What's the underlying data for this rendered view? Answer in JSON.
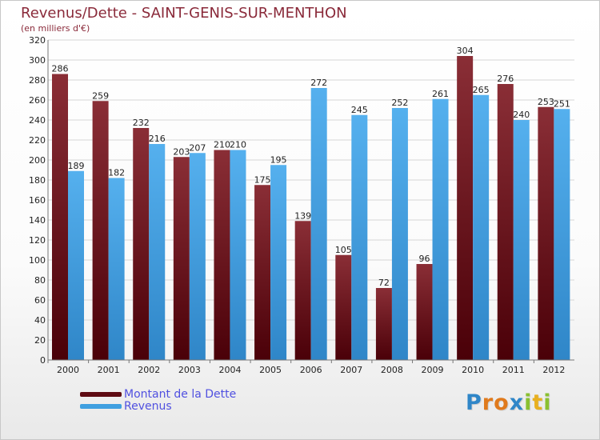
{
  "header": {
    "title": "Revenus/Dette - SAINT-GENIS-SUR-MENTHON",
    "subtitle": "(en milliers d'€)"
  },
  "chart_data": {
    "type": "bar",
    "categories": [
      "2000",
      "2001",
      "2002",
      "2003",
      "2004",
      "2005",
      "2006",
      "2007",
      "2008",
      "2009",
      "2010",
      "2011",
      "2012"
    ],
    "series": [
      {
        "name": "Montant de la Dette",
        "color": "#7a1c24",
        "values": [
          286,
          259,
          232,
          203,
          210,
          175,
          139,
          105,
          72,
          96,
          304,
          276,
          253
        ]
      },
      {
        "name": "Revenus",
        "color": "#3f9fe0",
        "values": [
          189,
          182,
          216,
          207,
          210,
          195,
          272,
          245,
          252,
          261,
          265,
          240,
          251
        ]
      }
    ],
    "yticks": [
      0,
      20,
      40,
      60,
      80,
      100,
      120,
      140,
      160,
      180,
      200,
      220,
      240,
      260,
      280,
      300,
      320
    ],
    "ylim": [
      0,
      320
    ],
    "grid": true,
    "legend_position": "bottom-left"
  },
  "legend": {
    "items": [
      {
        "label": "Montant de la Dette",
        "color": "#5e0a12"
      },
      {
        "label": "Revenus",
        "color": "#3f9fe0"
      }
    ]
  },
  "logo": {
    "letters": [
      "P",
      "r",
      "o",
      "x",
      "i",
      "t",
      "i"
    ],
    "colors": [
      "#2f86c8",
      "#e07a1c",
      "#e07a1c",
      "#2f86c8",
      "#8ac030",
      "#e8b020",
      "#8ac030"
    ]
  }
}
